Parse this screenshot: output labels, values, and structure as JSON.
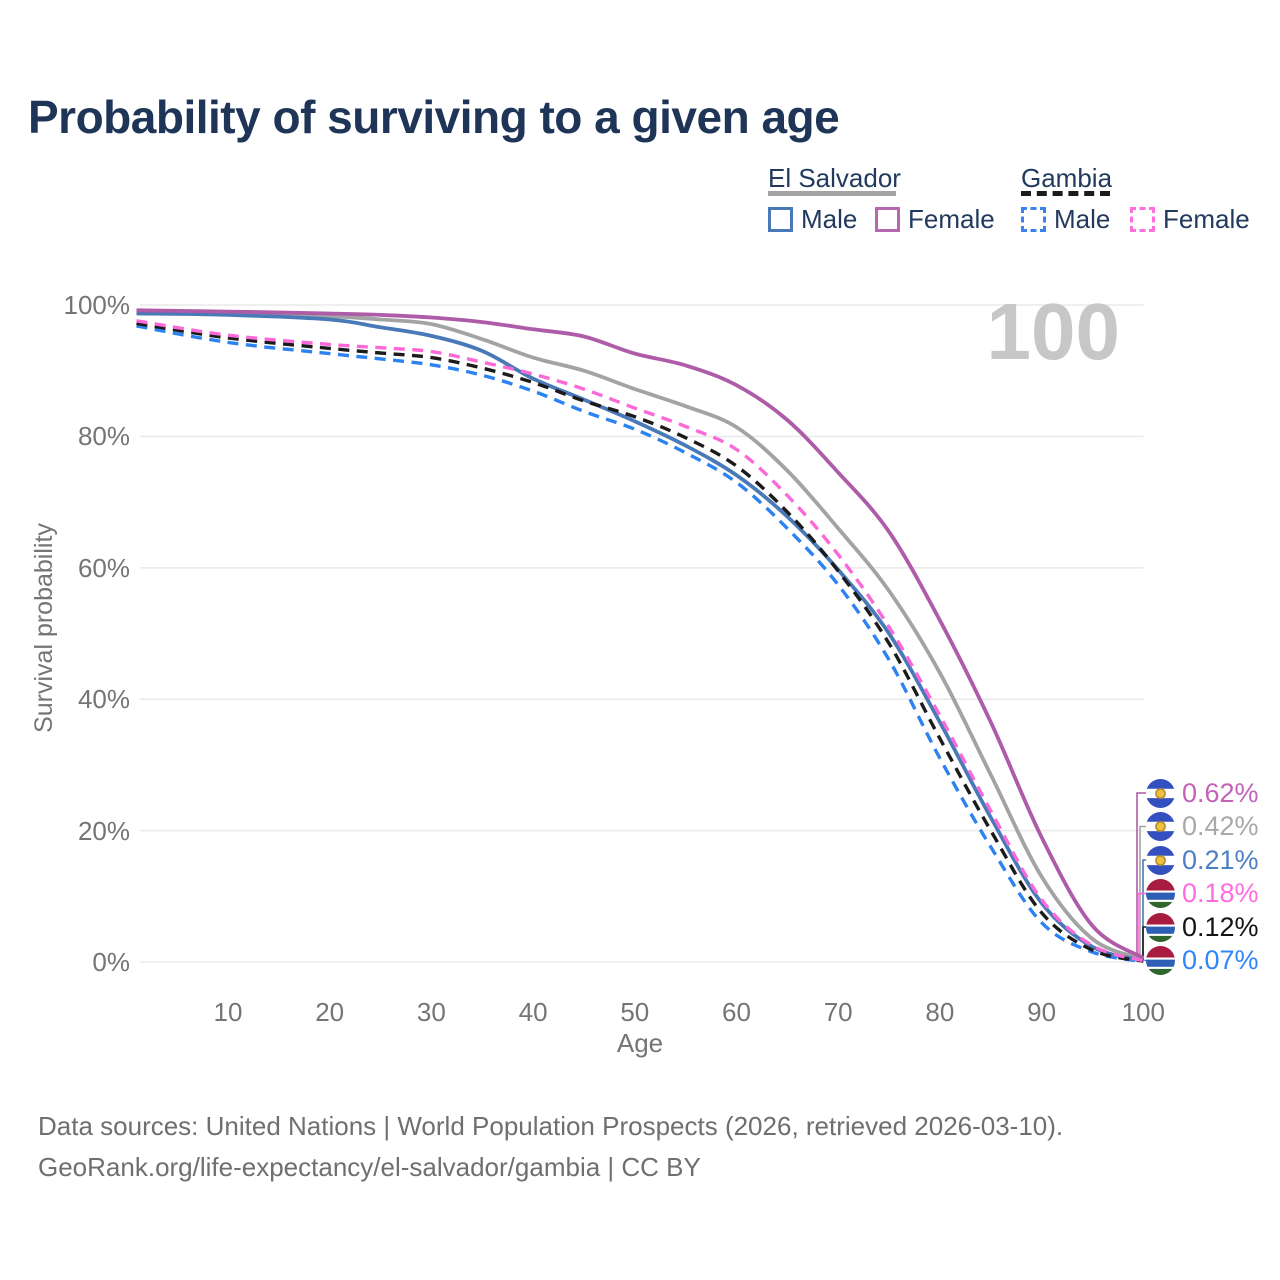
{
  "title": "Probability of surviving to a given age",
  "watermark_age": "100",
  "theme": {
    "background": "#ffffff",
    "title_color": "#1f3557",
    "axis_text_color": "#757575",
    "gridline_color": "#eaeaea",
    "legend_text_color": "#223a5e",
    "watermark_color": "#c7c7c7",
    "footer_color": "#6f6f6f"
  },
  "legend": {
    "groups": [
      {
        "label": "El Salvador",
        "line_style": "solid",
        "underline_color": "#a3a3a3",
        "items": [
          {
            "label": "Male",
            "color": "#4a79b8"
          },
          {
            "label": "Female",
            "color": "#b668ae"
          }
        ]
      },
      {
        "label": "Gambia",
        "line_style": "dashed",
        "underline_color": "#1b1b1b",
        "items": [
          {
            "label": "Male",
            "color": "#3b82ee"
          },
          {
            "label": "Female",
            "color": "#ff70df"
          }
        ]
      }
    ]
  },
  "axes": {
    "y_label": "Survival probability",
    "x_label": "Age",
    "y_ticks": [
      {
        "value": 0,
        "label": "0%"
      },
      {
        "value": 20,
        "label": "20%"
      },
      {
        "value": 40,
        "label": "40%"
      },
      {
        "value": 60,
        "label": "60%"
      },
      {
        "value": 80,
        "label": "80%"
      },
      {
        "value": 100,
        "label": "100%"
      }
    ],
    "x_ticks": [
      {
        "value": 10,
        "label": "10"
      },
      {
        "value": 20,
        "label": "20"
      },
      {
        "value": 30,
        "label": "30"
      },
      {
        "value": 40,
        "label": "40"
      },
      {
        "value": 50,
        "label": "50"
      },
      {
        "value": 60,
        "label": "60"
      },
      {
        "value": 70,
        "label": "70"
      },
      {
        "value": 80,
        "label": "80"
      },
      {
        "value": 90,
        "label": "90"
      },
      {
        "value": 100,
        "label": "100"
      }
    ]
  },
  "chart_data": {
    "type": "line",
    "title": "Probability of surviving to a given age",
    "xlabel": "Age",
    "ylabel": "Survival probability",
    "xlim": [
      1,
      100
    ],
    "ylim": [
      0,
      100
    ],
    "grid": "horizontal",
    "legend_position": "top-right",
    "x": [
      1,
      10,
      20,
      25,
      30,
      35,
      40,
      45,
      50,
      55,
      60,
      65,
      70,
      75,
      80,
      85,
      90,
      95,
      100
    ],
    "series": [
      {
        "name": "El Salvador Female",
        "country": "El Salvador",
        "sex": "Female",
        "color": "#ae5ba8",
        "dashed": false,
        "end_label": "0.62%",
        "values": [
          99.2,
          99.0,
          98.7,
          98.5,
          98.1,
          97.4,
          96.3,
          95.2,
          92.6,
          90.8,
          87.8,
          82.5,
          74.5,
          65.5,
          52.0,
          36.5,
          19.0,
          5.5,
          0.62
        ]
      },
      {
        "name": "El Salvador Both sexes",
        "country": "El Salvador",
        "sex": "Both",
        "color": "#a3a3a3",
        "dashed": false,
        "end_label": "0.42%",
        "values": [
          98.9,
          98.7,
          98.3,
          97.8,
          97.1,
          94.8,
          92.0,
          90.0,
          87.2,
          84.6,
          81.4,
          74.8,
          66.0,
          56.5,
          44.0,
          28.5,
          13.0,
          3.5,
          0.42
        ]
      },
      {
        "name": "El Salvador Male",
        "country": "El Salvador",
        "sex": "Male",
        "color": "#4a79b8",
        "dashed": false,
        "end_label": "0.21%",
        "values": [
          98.7,
          98.5,
          97.8,
          96.6,
          95.3,
          93.0,
          88.8,
          85.6,
          82.3,
          78.6,
          74.1,
          67.8,
          59.7,
          50.0,
          36.5,
          22.0,
          9.0,
          2.3,
          0.21
        ]
      },
      {
        "name": "Gambia Female",
        "country": "Gambia",
        "sex": "Female",
        "color": "#fa69d7",
        "dashed": true,
        "end_label": "0.18%",
        "values": [
          97.6,
          95.4,
          94.0,
          93.5,
          92.9,
          91.3,
          89.5,
          87.2,
          84.3,
          81.5,
          78.0,
          71.0,
          62.0,
          51.0,
          37.5,
          23.0,
          9.5,
          2.5,
          0.18
        ]
      },
      {
        "name": "Gambia Both sexes",
        "country": "Gambia",
        "sex": "Both",
        "color": "#1b1b1b",
        "dashed": true,
        "end_label": "0.12%",
        "values": [
          97.2,
          95.0,
          93.4,
          92.7,
          92.0,
          90.4,
          88.2,
          85.4,
          83.0,
          79.8,
          75.5,
          68.5,
          59.5,
          48.5,
          34.0,
          20.0,
          7.5,
          1.8,
          0.12
        ]
      },
      {
        "name": "Gambia Male",
        "country": "Gambia",
        "sex": "Male",
        "color": "#2d82f2",
        "dashed": true,
        "end_label": "0.07%",
        "values": [
          96.8,
          94.3,
          92.6,
          91.8,
          90.9,
          89.3,
          86.9,
          83.8,
          81.1,
          77.5,
          73.0,
          66.0,
          57.4,
          46.0,
          31.0,
          17.5,
          6.0,
          1.5,
          0.07
        ]
      }
    ]
  },
  "end_labels": [
    {
      "flag": "el-salvador",
      "value": "0.62%",
      "color": "#c262b8"
    },
    {
      "flag": "el-salvador",
      "value": "0.42%",
      "color": "#a8a8a8"
    },
    {
      "flag": "el-salvador",
      "value": "0.21%",
      "color": "#4d7fc4"
    },
    {
      "flag": "gambia",
      "value": "0.18%",
      "color": "#ff6ce2"
    },
    {
      "flag": "gambia",
      "value": "0.12%",
      "color": "#141414"
    },
    {
      "flag": "gambia",
      "value": "0.07%",
      "color": "#2f86f8"
    }
  ],
  "flags": {
    "el-salvador": {
      "icon_name": "el-salvador-flag-icon",
      "stripes": [
        [
          "#3450c0",
          0,
          0.34
        ],
        [
          "#ffffff",
          0.34,
          0.66
        ],
        [
          "#3450c0",
          0.66,
          1
        ]
      ],
      "emblem_color": "#eec13e",
      "emblem_ring_color": "#b98f2a"
    },
    "gambia": {
      "icon_name": "gambia-flag-icon",
      "stripes": [
        [
          "#a81d3f",
          0,
          0.4
        ],
        [
          "#ffffff",
          0.4,
          0.47
        ],
        [
          "#2e5fb5",
          0.47,
          0.72
        ],
        [
          "#ffffff",
          0.72,
          0.79
        ],
        [
          "#2f662c",
          0.79,
          1
        ]
      ]
    }
  },
  "footer": {
    "line1": "Data sources: United Nations | World Population Prospects (2026, retrieved 2026-03-10).",
    "line2": "GeoRank.org/life-expectancy/el-salvador/gambia | CC BY"
  }
}
